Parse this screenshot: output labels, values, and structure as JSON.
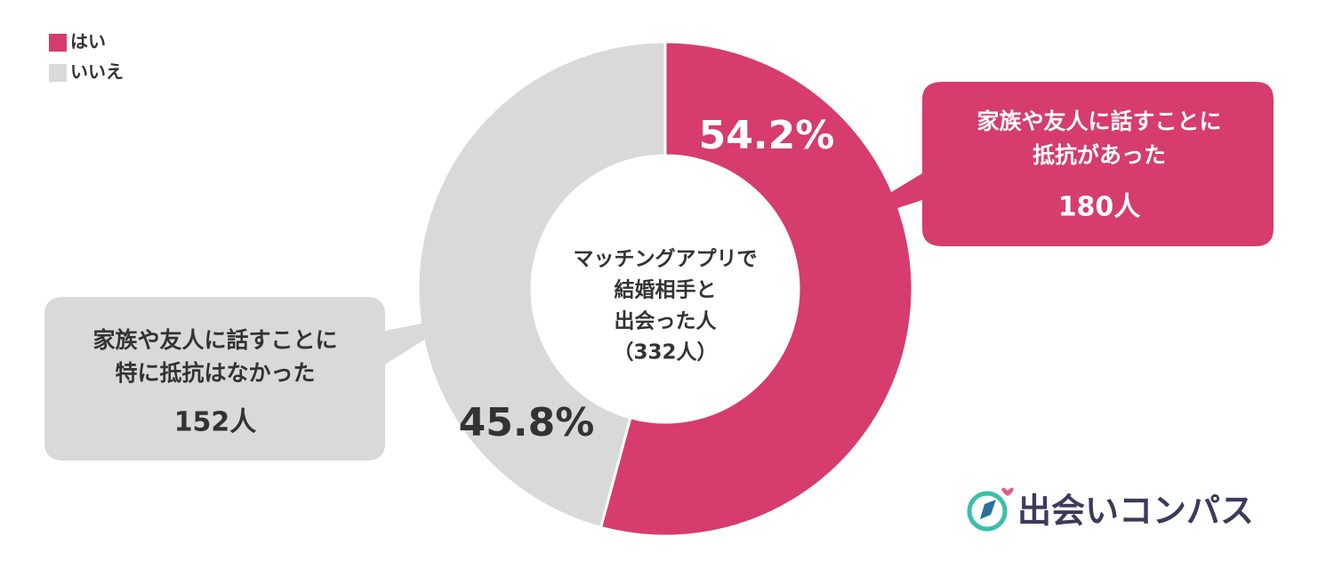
{
  "chart_data": {
    "type": "donut",
    "categories": [
      "はい",
      "いいえ"
    ],
    "values": [
      54.2,
      45.8
    ],
    "value_labels": [
      "54.2%",
      "45.8%"
    ],
    "colors": [
      "#d63c6c",
      "#d9d9d9"
    ],
    "center_label": [
      "マッチングアプリで",
      "結婚相手と",
      "出会った人",
      "（332人）"
    ],
    "annotations": [
      {
        "lines": [
          "家族や友人に話すことに",
          "抵抗があった"
        ],
        "count": "180人"
      },
      {
        "lines": [
          "家族や友人に話すことに",
          "特に抵抗はなかった"
        ],
        "count": "152人"
      }
    ],
    "legend": "top-left"
  },
  "logo": "出会いコンパス"
}
